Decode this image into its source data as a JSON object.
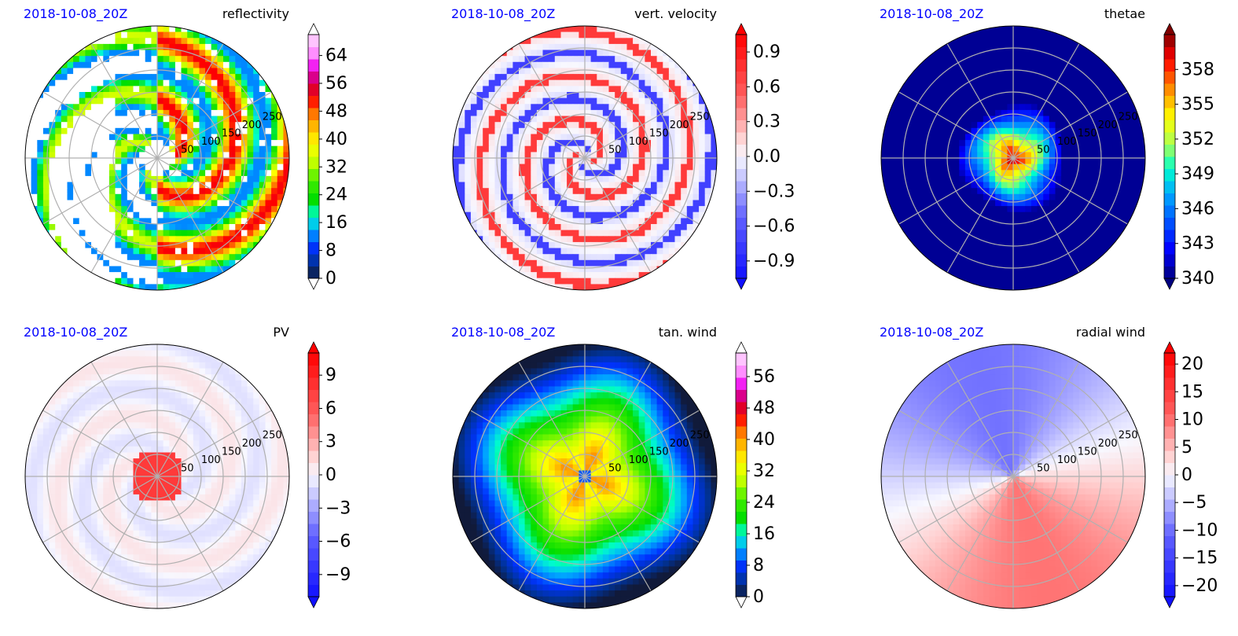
{
  "panels": [
    {
      "time": "2018-10-08_20Z",
      "variable": "reflectivity",
      "cmap": "refl",
      "ext": "white",
      "vmin": 0,
      "vmax": 70,
      "ticks": [
        "0",
        "8",
        "16",
        "24",
        "32",
        "40",
        "48",
        "56",
        "64"
      ],
      "tickvals": [
        0,
        8,
        16,
        24,
        32,
        40,
        48,
        56,
        64
      ]
    },
    {
      "time": "2018-10-08_20Z",
      "variable": "vert. velocity",
      "cmap": "bwr",
      "ext": "color",
      "vmin": -1.05,
      "vmax": 1.05,
      "ticks": [
        "−0.9",
        "−0.6",
        "−0.3",
        "0.0",
        "0.3",
        "0.6",
        "0.9"
      ],
      "tickvals": [
        -0.9,
        -0.6,
        -0.3,
        0,
        0.3,
        0.6,
        0.9
      ]
    },
    {
      "time": "2018-10-08_20Z",
      "variable": "thetae",
      "cmap": "jet",
      "ext": "color",
      "vmin": 340,
      "vmax": 361,
      "ticks": [
        "340",
        "343",
        "346",
        "349",
        "352",
        "355",
        "358"
      ],
      "tickvals": [
        340,
        343,
        346,
        349,
        352,
        355,
        358
      ]
    },
    {
      "time": "2018-10-08_20Z",
      "variable": "PV",
      "cmap": "bwr",
      "ext": "color",
      "vmin": -11,
      "vmax": 11,
      "ticks": [
        "−9",
        "−6",
        "−3",
        "0",
        "3",
        "6",
        "9"
      ],
      "tickvals": [
        -9,
        -6,
        -3,
        0,
        3,
        6,
        9
      ]
    },
    {
      "time": "2018-10-08_20Z",
      "variable": "tan. wind",
      "cmap": "refl",
      "ext": "white",
      "vmin": 0,
      "vmax": 62,
      "ticks": [
        "0",
        "8",
        "16",
        "24",
        "32",
        "40",
        "48",
        "56"
      ],
      "tickvals": [
        0,
        8,
        16,
        24,
        32,
        40,
        48,
        56
      ]
    },
    {
      "time": "2018-10-08_20Z",
      "variable": "radial wind",
      "cmap": "bwr",
      "ext": "color",
      "vmin": -22,
      "vmax": 22,
      "ticks": [
        "−20",
        "−15",
        "−10",
        "−5",
        "0",
        "5",
        "10",
        "15",
        "20"
      ],
      "tickvals": [
        -20,
        -15,
        -10,
        -5,
        0,
        5,
        10,
        15,
        20
      ]
    }
  ],
  "range_ring_labels": [
    "50",
    "100",
    "150",
    "200",
    "250"
  ],
  "chart_data": {
    "type": "heatmap",
    "projection": "polar",
    "range_rings": [
      50,
      100,
      150,
      200,
      250
    ],
    "panels": [
      "reflectivity",
      "vert. velocity",
      "thetae",
      "PV",
      "tan. wind",
      "radial wind"
    ]
  }
}
